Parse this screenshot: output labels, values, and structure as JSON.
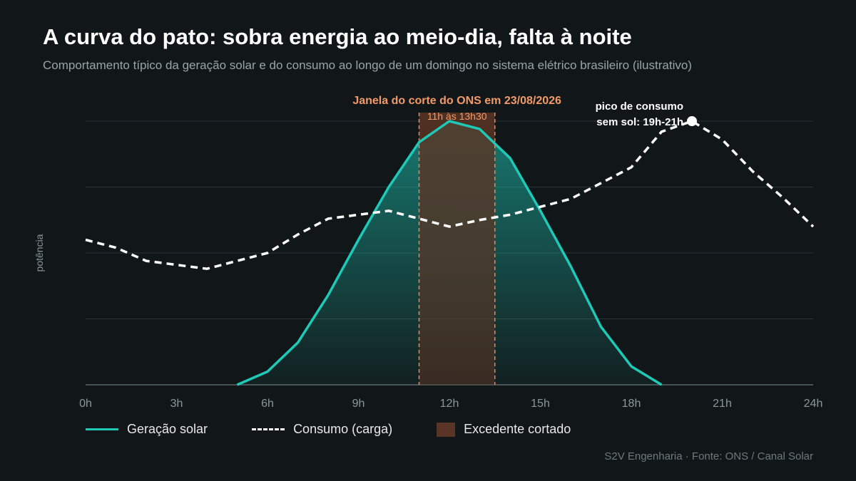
{
  "header": {
    "title": "A curva do pato: sobra energia ao meio-dia, falta à noite",
    "subtitle": "Comportamento típico da geração solar e do consumo ao longo de um domingo no sistema elétrico brasileiro (ilustrativo)"
  },
  "footer": {
    "source": "S2V Engenharia · Fonte: ONS / Canal Solar"
  },
  "legend": {
    "solar": "Geração solar",
    "consumo": "Consumo (carga)",
    "excedente": "Excedente cortado"
  },
  "colors": {
    "background": "#111719",
    "solar": "#1ec9b7",
    "consumo": "#ffffff",
    "corte_fill": "#5a3424",
    "corte_line": "#e7885a",
    "corte_text": "#f29a6a",
    "grid": "#2a3336",
    "axis_text": "#8d9699"
  },
  "chart_data": {
    "type": "area",
    "xlabel": "",
    "ylabel": "potência",
    "xlim": [
      0,
      24
    ],
    "ylim": [
      0,
      100
    ],
    "x_ticks": [
      0,
      3,
      6,
      9,
      12,
      15,
      18,
      21,
      24
    ],
    "x_tick_labels": [
      "0h",
      "3h",
      "6h",
      "9h",
      "12h",
      "15h",
      "18h",
      "21h",
      "24h"
    ],
    "grid": "horizontal",
    "legend_position": "bottom",
    "series": [
      {
        "name": "Geração solar",
        "style": "line-area",
        "x": [
          5,
          6,
          7,
          8,
          9,
          10,
          11,
          12,
          13,
          14,
          15,
          16,
          17,
          18,
          19
        ],
        "y": [
          0,
          5,
          16,
          34,
          55,
          75,
          92,
          100,
          97,
          86,
          66,
          45,
          22,
          7,
          0
        ]
      },
      {
        "name": "Consumo (carga)",
        "style": "dashed",
        "x": [
          0,
          1,
          2,
          3,
          4,
          5,
          6,
          7,
          8,
          9,
          10,
          11,
          12,
          13,
          14,
          15,
          16,
          17,
          18,
          19,
          20,
          21,
          22,
          23,
          24
        ],
        "y": [
          55,
          52,
          47,
          45.5,
          44,
          47,
          50,
          57,
          63,
          64.5,
          66,
          63,
          60,
          62.5,
          64.5,
          67.5,
          70.5,
          76.5,
          82.5,
          96,
          100,
          93,
          81,
          71,
          60
        ]
      }
    ],
    "band": {
      "name": "Excedente cortado",
      "x_start": 11,
      "x_end": 13.5
    },
    "annotations": {
      "corte_title": "Janela do corte do ONS em 23/08/2026",
      "corte_sub": "11h às 13h30",
      "pico_line1": "pico de consumo",
      "pico_line2": "sem sol: 19h-21h",
      "pico_point": {
        "x": 20,
        "y": 100
      }
    }
  }
}
